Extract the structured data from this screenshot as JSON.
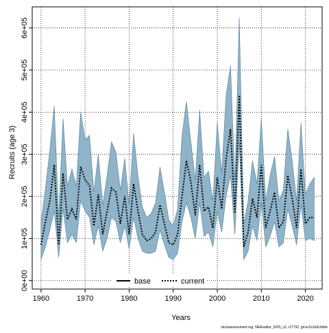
{
  "chart_data": {
    "type": "line",
    "title": "",
    "xlabel": "Years",
    "ylabel": "Recruits (age 3)",
    "xlim": [
      1958,
      2023.8
    ],
    "ylim": [
      -20000,
      650000
    ],
    "x_ticks": [
      1960,
      1970,
      1980,
      1990,
      2000,
      2010,
      2020
    ],
    "y_ticks": [
      {
        "value": 0,
        "label": "0e+00"
      },
      {
        "value": 100000,
        "label": "1e+05"
      },
      {
        "value": 200000,
        "label": "2e+05"
      },
      {
        "value": 300000,
        "label": "3e+05"
      },
      {
        "value": 400000,
        "label": "4e+05"
      },
      {
        "value": 500000,
        "label": "5e+05"
      },
      {
        "value": 600000,
        "label": "6e+05"
      }
    ],
    "grid": true,
    "legend": {
      "position": "bottom-center",
      "entries": [
        {
          "name": "base",
          "style": "solid",
          "color": "#000000"
        },
        {
          "name": "current",
          "style": "dotted",
          "color": "#000000"
        }
      ]
    },
    "colors": {
      "band": "#8fb3c8",
      "band_edge": "#4f7f99",
      "line": "#000000"
    },
    "x": [
      1960,
      1961,
      1962,
      1963,
      1964,
      1965,
      1966,
      1967,
      1968,
      1969,
      1970,
      1971,
      1972,
      1973,
      1974,
      1975,
      1976,
      1977,
      1978,
      1979,
      1980,
      1981,
      1982,
      1983,
      1984,
      1985,
      1986,
      1987,
      1988,
      1989,
      1990,
      1991,
      1992,
      1993,
      1994,
      1995,
      1996,
      1997,
      1998,
      1999,
      2000,
      2001,
      2002,
      2003,
      2004,
      2005,
      2006,
      2007,
      2008,
      2009,
      2010,
      2011,
      2012,
      2013,
      2014,
      2015,
      2016,
      2017,
      2018,
      2019,
      2020,
      2021,
      2022
    ],
    "series": [
      {
        "name": "current",
        "values": [
          85000,
          140000,
          190000,
          275000,
          85000,
          255000,
          145000,
          170000,
          145000,
          270000,
          240000,
          225000,
          130000,
          205000,
          110000,
          165000,
          220000,
          210000,
          135000,
          200000,
          110000,
          230000,
          165000,
          110000,
          95000,
          100000,
          115000,
          180000,
          135000,
          90000,
          85000,
          110000,
          200000,
          285000,
          235000,
          155000,
          275000,
          165000,
          175000,
          125000,
          245000,
          170000,
          290000,
          360000,
          160000,
          440000,
          80000,
          115000,
          195000,
          150000,
          275000,
          125000,
          165000,
          210000,
          125000,
          140000,
          250000,
          195000,
          125000,
          265000,
          135000,
          150000,
          150000
        ],
        "lower": [
          50000,
          80000,
          120000,
          165000,
          55000,
          170000,
          90000,
          110000,
          90000,
          190000,
          165000,
          150000,
          85000,
          130000,
          70000,
          100000,
          150000,
          140000,
          90000,
          130000,
          75000,
          150000,
          100000,
          70000,
          65000,
          65000,
          70000,
          120000,
          85000,
          55000,
          50000,
          65000,
          140000,
          185000,
          150000,
          100000,
          185000,
          105000,
          115000,
          80000,
          165000,
          115000,
          200000,
          250000,
          110000,
          330000,
          50000,
          70000,
          130000,
          95000,
          185000,
          80000,
          105000,
          140000,
          80000,
          90000,
          170000,
          130000,
          85000,
          180000,
          95000,
          100000,
          95000
        ],
        "upper": [
          140000,
          220000,
          310000,
          415000,
          150000,
          385000,
          225000,
          265000,
          225000,
          400000,
          335000,
          345000,
          210000,
          300000,
          180000,
          250000,
          330000,
          305000,
          215000,
          290000,
          180000,
          350000,
          250000,
          175000,
          150000,
          160000,
          185000,
          270000,
          210000,
          145000,
          130000,
          170000,
          345000,
          425000,
          330000,
          240000,
          405000,
          245000,
          260000,
          190000,
          375000,
          255000,
          440000,
          510000,
          235000,
          625000,
          135000,
          190000,
          285000,
          230000,
          385000,
          190000,
          250000,
          295000,
          190000,
          215000,
          360000,
          285000,
          190000,
          375000,
          205000,
          230000,
          245000
        ]
      }
    ]
  },
  "footer": {
    "source": "stockassessment.org, NEAsaithe_2025_v3, r17792, git:ec2c2a0c6dde"
  }
}
